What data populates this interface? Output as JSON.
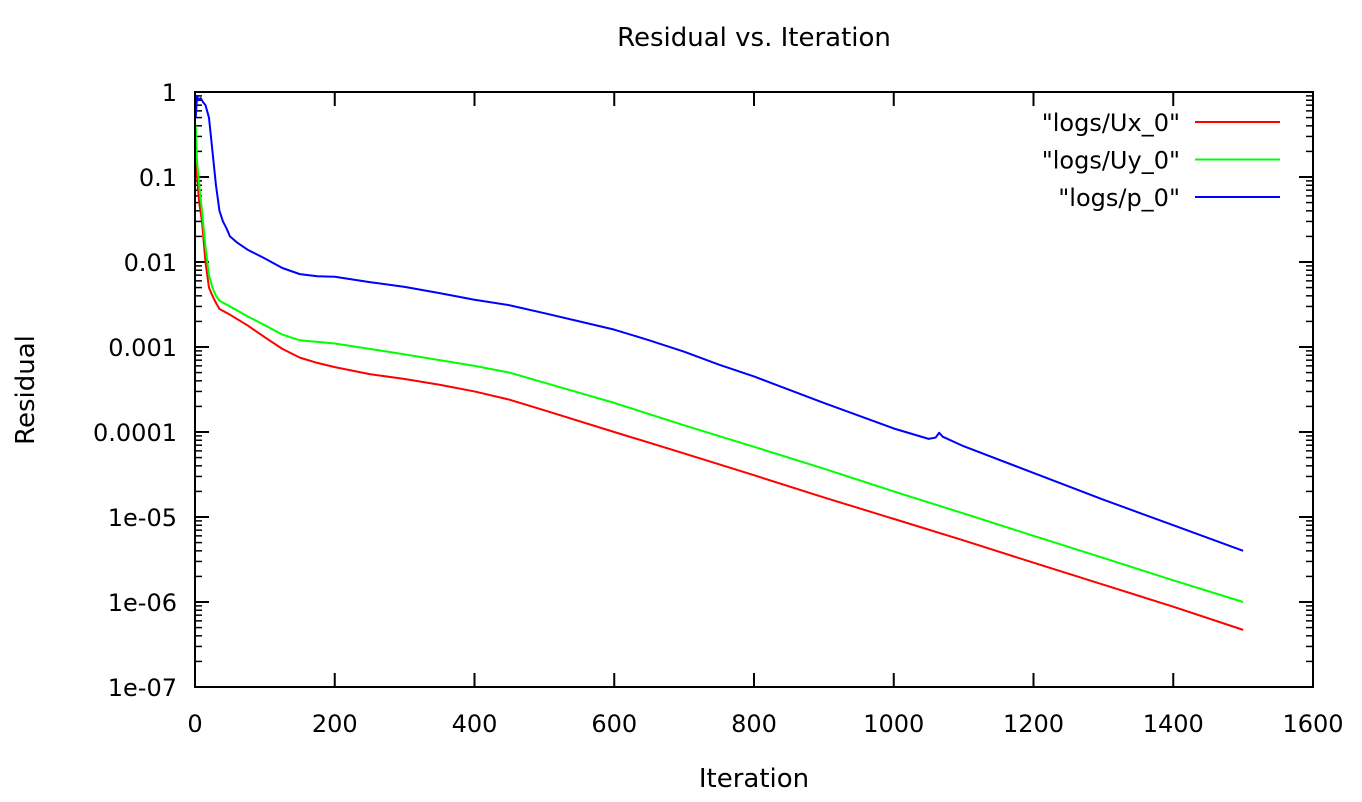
{
  "chart_data": {
    "type": "line",
    "title": "Residual vs. Iteration",
    "xlabel": "Iteration",
    "ylabel": "Residual",
    "xlim": [
      0,
      1600
    ],
    "ylim": [
      1e-07,
      1
    ],
    "yscale": "log",
    "grid": false,
    "legend_position": "top-right",
    "x_ticks": [
      0,
      200,
      400,
      600,
      800,
      1000,
      1200,
      1400,
      1600
    ],
    "x_tick_labels": [
      "0",
      "200",
      "400",
      "600",
      "800",
      "1000",
      "1200",
      "1400",
      "1600"
    ],
    "y_ticks": [
      1e-07,
      1e-06,
      1e-05,
      0.0001,
      0.001,
      0.01,
      0.1,
      1
    ],
    "y_tick_labels": [
      "1e-07",
      "1e-06",
      "1e-05",
      "0.0001",
      "0.001",
      "0.01",
      "0.1",
      "1"
    ],
    "series": [
      {
        "name": "\"logs/Ux_0\"",
        "color": "#ff0000",
        "x": [
          1,
          3,
          6,
          10,
          15,
          20,
          25,
          30,
          35,
          50,
          75,
          100,
          125,
          150,
          175,
          200,
          250,
          300,
          350,
          400,
          450,
          500,
          600,
          700,
          800,
          900,
          1000,
          1100,
          1200,
          1300,
          1400,
          1500
        ],
        "y": [
          0.3,
          0.1,
          0.05,
          0.03,
          0.01,
          0.005,
          0.004,
          0.0033,
          0.0028,
          0.0024,
          0.0018,
          0.0013,
          0.00095,
          0.00075,
          0.00065,
          0.00058,
          0.00048,
          0.00042,
          0.00036,
          0.0003,
          0.00024,
          0.00018,
          0.0001,
          5.6e-05,
          3.1e-05,
          1.7e-05,
          9.5e-06,
          5.3e-06,
          2.9e-06,
          1.6e-06,
          8.8e-07,
          4.7e-07
        ]
      },
      {
        "name": "\"logs/Uy_0\"",
        "color": "#00ff00",
        "x": [
          1,
          3,
          6,
          10,
          15,
          20,
          25,
          30,
          35,
          50,
          75,
          100,
          125,
          150,
          175,
          200,
          250,
          300,
          350,
          400,
          450,
          500,
          600,
          700,
          800,
          900,
          1000,
          1100,
          1200,
          1300,
          1400,
          1500
        ],
        "y": [
          0.4,
          0.15,
          0.08,
          0.04,
          0.015,
          0.007,
          0.005,
          0.004,
          0.0035,
          0.003,
          0.0023,
          0.0018,
          0.0014,
          0.0012,
          0.00115,
          0.0011,
          0.00095,
          0.00082,
          0.0007,
          0.0006,
          0.0005,
          0.00038,
          0.00022,
          0.00012,
          6.7e-05,
          3.7e-05,
          2e-05,
          1.1e-05,
          6e-06,
          3.3e-06,
          1.8e-06,
          1e-06
        ]
      },
      {
        "name": "\"logs/p_0\"",
        "color": "#0000ff",
        "x": [
          1,
          3,
          5,
          8,
          12,
          15,
          20,
          25,
          30,
          35,
          40,
          45,
          50,
          60,
          75,
          100,
          125,
          150,
          175,
          200,
          250,
          300,
          350,
          400,
          450,
          500,
          550,
          600,
          650,
          700,
          750,
          800,
          900,
          1000,
          1050,
          1060,
          1065,
          1070,
          1100,
          1200,
          1300,
          1400,
          1500
        ],
        "y": [
          0.5,
          0.9,
          0.8,
          0.85,
          0.75,
          0.7,
          0.5,
          0.2,
          0.08,
          0.04,
          0.03,
          0.025,
          0.02,
          0.017,
          0.014,
          0.011,
          0.0085,
          0.0072,
          0.0068,
          0.0067,
          0.0058,
          0.0051,
          0.0043,
          0.0036,
          0.0031,
          0.0025,
          0.002,
          0.0016,
          0.0012,
          0.00088,
          0.00062,
          0.00045,
          0.00022,
          0.00011,
          8.3e-05,
          8.6e-05,
          9.8e-05,
          8.8e-05,
          6.8e-05,
          3.3e-05,
          1.6e-05,
          8e-06,
          4e-06
        ]
      }
    ]
  }
}
